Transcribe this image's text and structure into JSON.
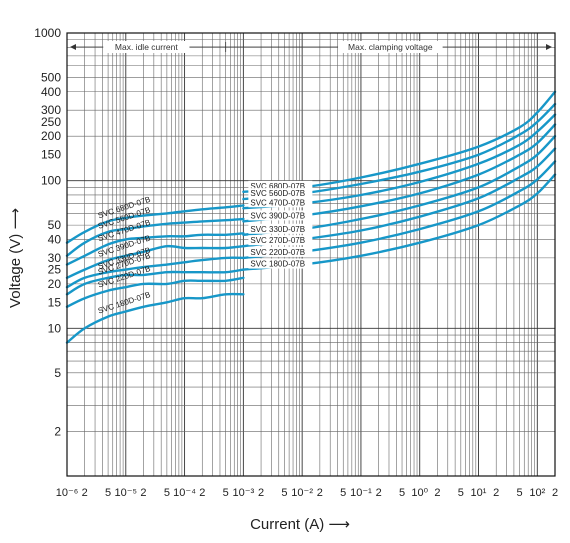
{
  "chart_data": {
    "type": "line",
    "title": "",
    "xlabel": "Current (A) ⟶",
    "ylabel": "Voltage (V) ⟶",
    "x_scale": "log",
    "y_scale": "log",
    "xlim": [
      1e-06,
      200
    ],
    "ylim": [
      1,
      1000
    ],
    "grid": true,
    "line_color": "#1797c8",
    "y_ticks": [
      "1000",
      "500",
      "400",
      "300",
      "250",
      "200",
      "150",
      "100",
      "50",
      "40",
      "30",
      "25",
      "20",
      "15",
      "10",
      "5",
      "2"
    ],
    "x_tick_labels": [
      "10⁻⁶",
      "2",
      "5",
      "10⁻⁵",
      "2",
      "5",
      "10⁻⁴",
      "2",
      "5",
      "10⁻³",
      "2",
      "5",
      "10⁻²",
      "2",
      "5",
      "10⁻¹",
      "2",
      "5",
      "10⁰",
      "2",
      "5",
      "10¹",
      "2",
      "5",
      "10²",
      "2"
    ],
    "annotations": {
      "left": "Max. idle current",
      "right": "Max. clamping voltage"
    },
    "series": [
      {
        "name": "SVC 680D-07B",
        "idle_x": [
          1e-06,
          2e-06,
          5e-06,
          1e-05,
          2e-05,
          5e-05,
          0.0001,
          0.0002,
          0.0005,
          0.001
        ],
        "idle_y": [
          38,
          45,
          53,
          56,
          58,
          60,
          62,
          64,
          66,
          68
        ],
        "clamp_x": [
          0.001,
          0.01,
          0.1,
          1,
          10,
          50,
          100,
          200
        ],
        "clamp_y": [
          84,
          90,
          105,
          130,
          170,
          230,
          290,
          400
        ]
      },
      {
        "name": "SVC 560D-07B",
        "idle_x": [
          1e-06,
          2e-06,
          5e-06,
          1e-05,
          2e-05,
          5e-05,
          0.0001,
          0.0002,
          0.0005,
          0.001
        ],
        "idle_y": [
          31,
          38,
          45,
          47,
          49,
          51,
          52,
          53,
          54,
          55
        ],
        "clamp_x": [
          0.001,
          0.01,
          0.1,
          1,
          10,
          50,
          100,
          200
        ],
        "clamp_y": [
          75,
          82,
          95,
          115,
          150,
          205,
          250,
          330
        ]
      },
      {
        "name": "SVC 470D-07B",
        "idle_x": [
          1e-06,
          2e-06,
          5e-06,
          1e-05,
          2e-05,
          5e-05,
          0.0001,
          0.0002,
          0.0005,
          0.001
        ],
        "idle_y": [
          27,
          31,
          37,
          40,
          41,
          42,
          42,
          43,
          43,
          44
        ],
        "clamp_x": [
          0.001,
          0.01,
          0.1,
          1,
          10,
          50,
          100,
          200
        ],
        "clamp_y": [
          65,
          70,
          80,
          98,
          130,
          175,
          215,
          280
        ]
      },
      {
        "name": "SVC 390D-07B",
        "idle_x": [
          1e-06,
          2e-06,
          5e-06,
          1e-05,
          2e-05,
          5e-05,
          0.0001,
          0.0002,
          0.0005,
          0.001
        ],
        "idle_y": [
          22,
          25,
          29,
          31,
          33,
          36,
          35,
          35,
          35,
          36
        ],
        "clamp_x": [
          0.001,
          0.01,
          0.1,
          1,
          10,
          50,
          100,
          200
        ],
        "clamp_y": [
          53,
          58,
          67,
          82,
          110,
          150,
          180,
          240
        ]
      },
      {
        "name": "SVC 330D-07B",
        "idle_x": [
          1e-06,
          2e-06,
          5e-06,
          1e-05,
          2e-05,
          5e-05,
          0.0001,
          0.0002,
          0.0005,
          0.001
        ],
        "idle_y": [
          19,
          22,
          24,
          25,
          26,
          27,
          28,
          29,
          30,
          30
        ],
        "clamp_x": [
          0.001,
          0.01,
          0.1,
          1,
          10,
          50,
          100,
          200
        ],
        "clamp_y": [
          43,
          47,
          55,
          68,
          90,
          125,
          150,
          200
        ]
      },
      {
        "name": "SVC 270D-07B",
        "idle_x": [
          1e-06,
          2e-06,
          5e-06,
          1e-05,
          2e-05,
          5e-05,
          0.0001,
          0.0002,
          0.0005,
          0.001
        ],
        "idle_y": [
          17,
          20,
          22,
          23,
          23,
          24,
          24,
          24,
          24,
          25
        ],
        "clamp_x": [
          0.001,
          0.01,
          0.1,
          1,
          10,
          50,
          100,
          200
        ],
        "clamp_y": [
          36,
          40,
          46,
          57,
          76,
          105,
          125,
          165
        ]
      },
      {
        "name": "SVC 220D-07B",
        "idle_x": [
          1e-06,
          2e-06,
          5e-06,
          1e-05,
          2e-05,
          5e-05,
          0.0001,
          0.0002,
          0.0005,
          0.001
        ],
        "idle_y": [
          14,
          16,
          18,
          19,
          20,
          20,
          21,
          21,
          21,
          22
        ],
        "clamp_x": [
          0.001,
          0.01,
          0.1,
          1,
          10,
          50,
          100,
          200
        ],
        "clamp_y": [
          30,
          33,
          38,
          47,
          62,
          85,
          102,
          135
        ]
      },
      {
        "name": "SVC 180D-07B",
        "idle_x": [
          1e-06,
          2e-06,
          5e-06,
          1e-05,
          2e-05,
          5e-05,
          0.0001,
          0.0002,
          0.0005,
          0.001
        ],
        "idle_y": [
          8,
          10,
          12,
          13,
          14,
          15,
          16,
          16,
          17,
          17
        ],
        "clamp_x": [
          0.001,
          0.01,
          0.1,
          1,
          10,
          50,
          100,
          200
        ],
        "clamp_y": [
          25,
          27,
          31,
          38,
          50,
          68,
          82,
          110
        ]
      }
    ]
  }
}
